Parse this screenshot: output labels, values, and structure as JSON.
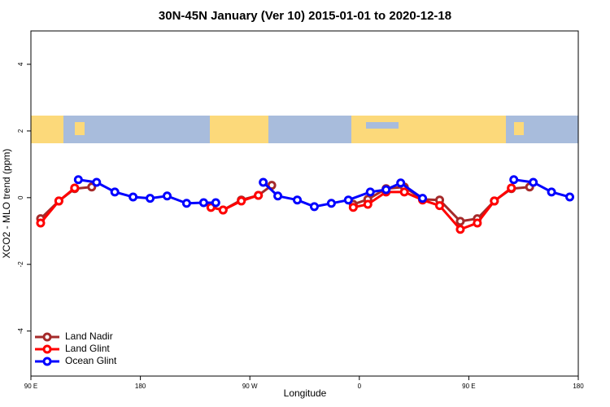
{
  "chart_data": {
    "type": "line",
    "title": "30N-45N January (Ver 10)   2015-01-01 to 2020-12-18",
    "x_label": "Longitude",
    "y_label": "XCO2 - MLO trend (ppm)",
    "xlim": [
      90,
      540
    ],
    "xticks": [
      {
        "value": 90,
        "label": "90 E"
      },
      180,
      {
        "value": 270,
        "label": "90 W"
      },
      {
        "value": 360,
        "label": "0"
      },
      {
        "value": 450,
        "label": "90 E"
      },
      {
        "value": 540,
        "label": "180"
      }
    ],
    "ylim": [
      -5.35,
      5
    ],
    "yticks": [
      -4,
      -2,
      0,
      2,
      4
    ],
    "legend": "bottom-left",
    "series": [
      {
        "name": "Land Nadir",
        "color": "#a52a2a",
        "x": [
          98,
          113,
          126,
          140,
          null,
          238,
          248,
          263,
          277,
          288,
          null,
          355,
          367,
          382,
          397,
          412,
          426,
          443,
          457,
          471,
          485,
          500
        ],
        "values": [
          -0.63,
          -0.1,
          0.27,
          0.32,
          null,
          -0.29,
          -0.37,
          -0.07,
          0.07,
          0.37,
          null,
          -0.2,
          -0.05,
          0.27,
          0.32,
          -0.05,
          -0.07,
          -0.71,
          -0.63,
          -0.1,
          0.27,
          0.32
        ]
      },
      {
        "name": "Land Glint",
        "color": "#ff0000",
        "x": [
          98,
          113,
          126,
          null,
          238,
          248,
          263,
          277,
          null,
          355,
          367,
          382,
          397,
          412,
          426,
          443,
          457,
          471,
          485
        ],
        "values": [
          -0.76,
          -0.1,
          0.29,
          null,
          -0.29,
          -0.37,
          -0.1,
          0.07,
          null,
          -0.29,
          -0.2,
          0.17,
          0.17,
          -0.07,
          -0.24,
          -0.95,
          -0.76,
          -0.1,
          0.29
        ]
      },
      {
        "name": "Ocean Glint",
        "color": "#0000ff",
        "x": [
          129,
          144,
          159,
          174,
          188,
          202,
          218,
          232,
          242,
          null,
          281,
          293,
          309,
          323,
          337,
          351,
          369,
          382,
          394,
          412,
          null,
          487,
          503,
          518,
          533
        ],
        "values": [
          0.54,
          0.46,
          0.17,
          0.02,
          -0.02,
          0.05,
          -0.17,
          -0.15,
          -0.15,
          null,
          0.46,
          0.05,
          -0.07,
          -0.27,
          -0.17,
          -0.07,
          0.17,
          0.24,
          0.44,
          -0.02,
          null,
          0.54,
          0.46,
          0.17,
          0.02
        ]
      }
    ]
  }
}
